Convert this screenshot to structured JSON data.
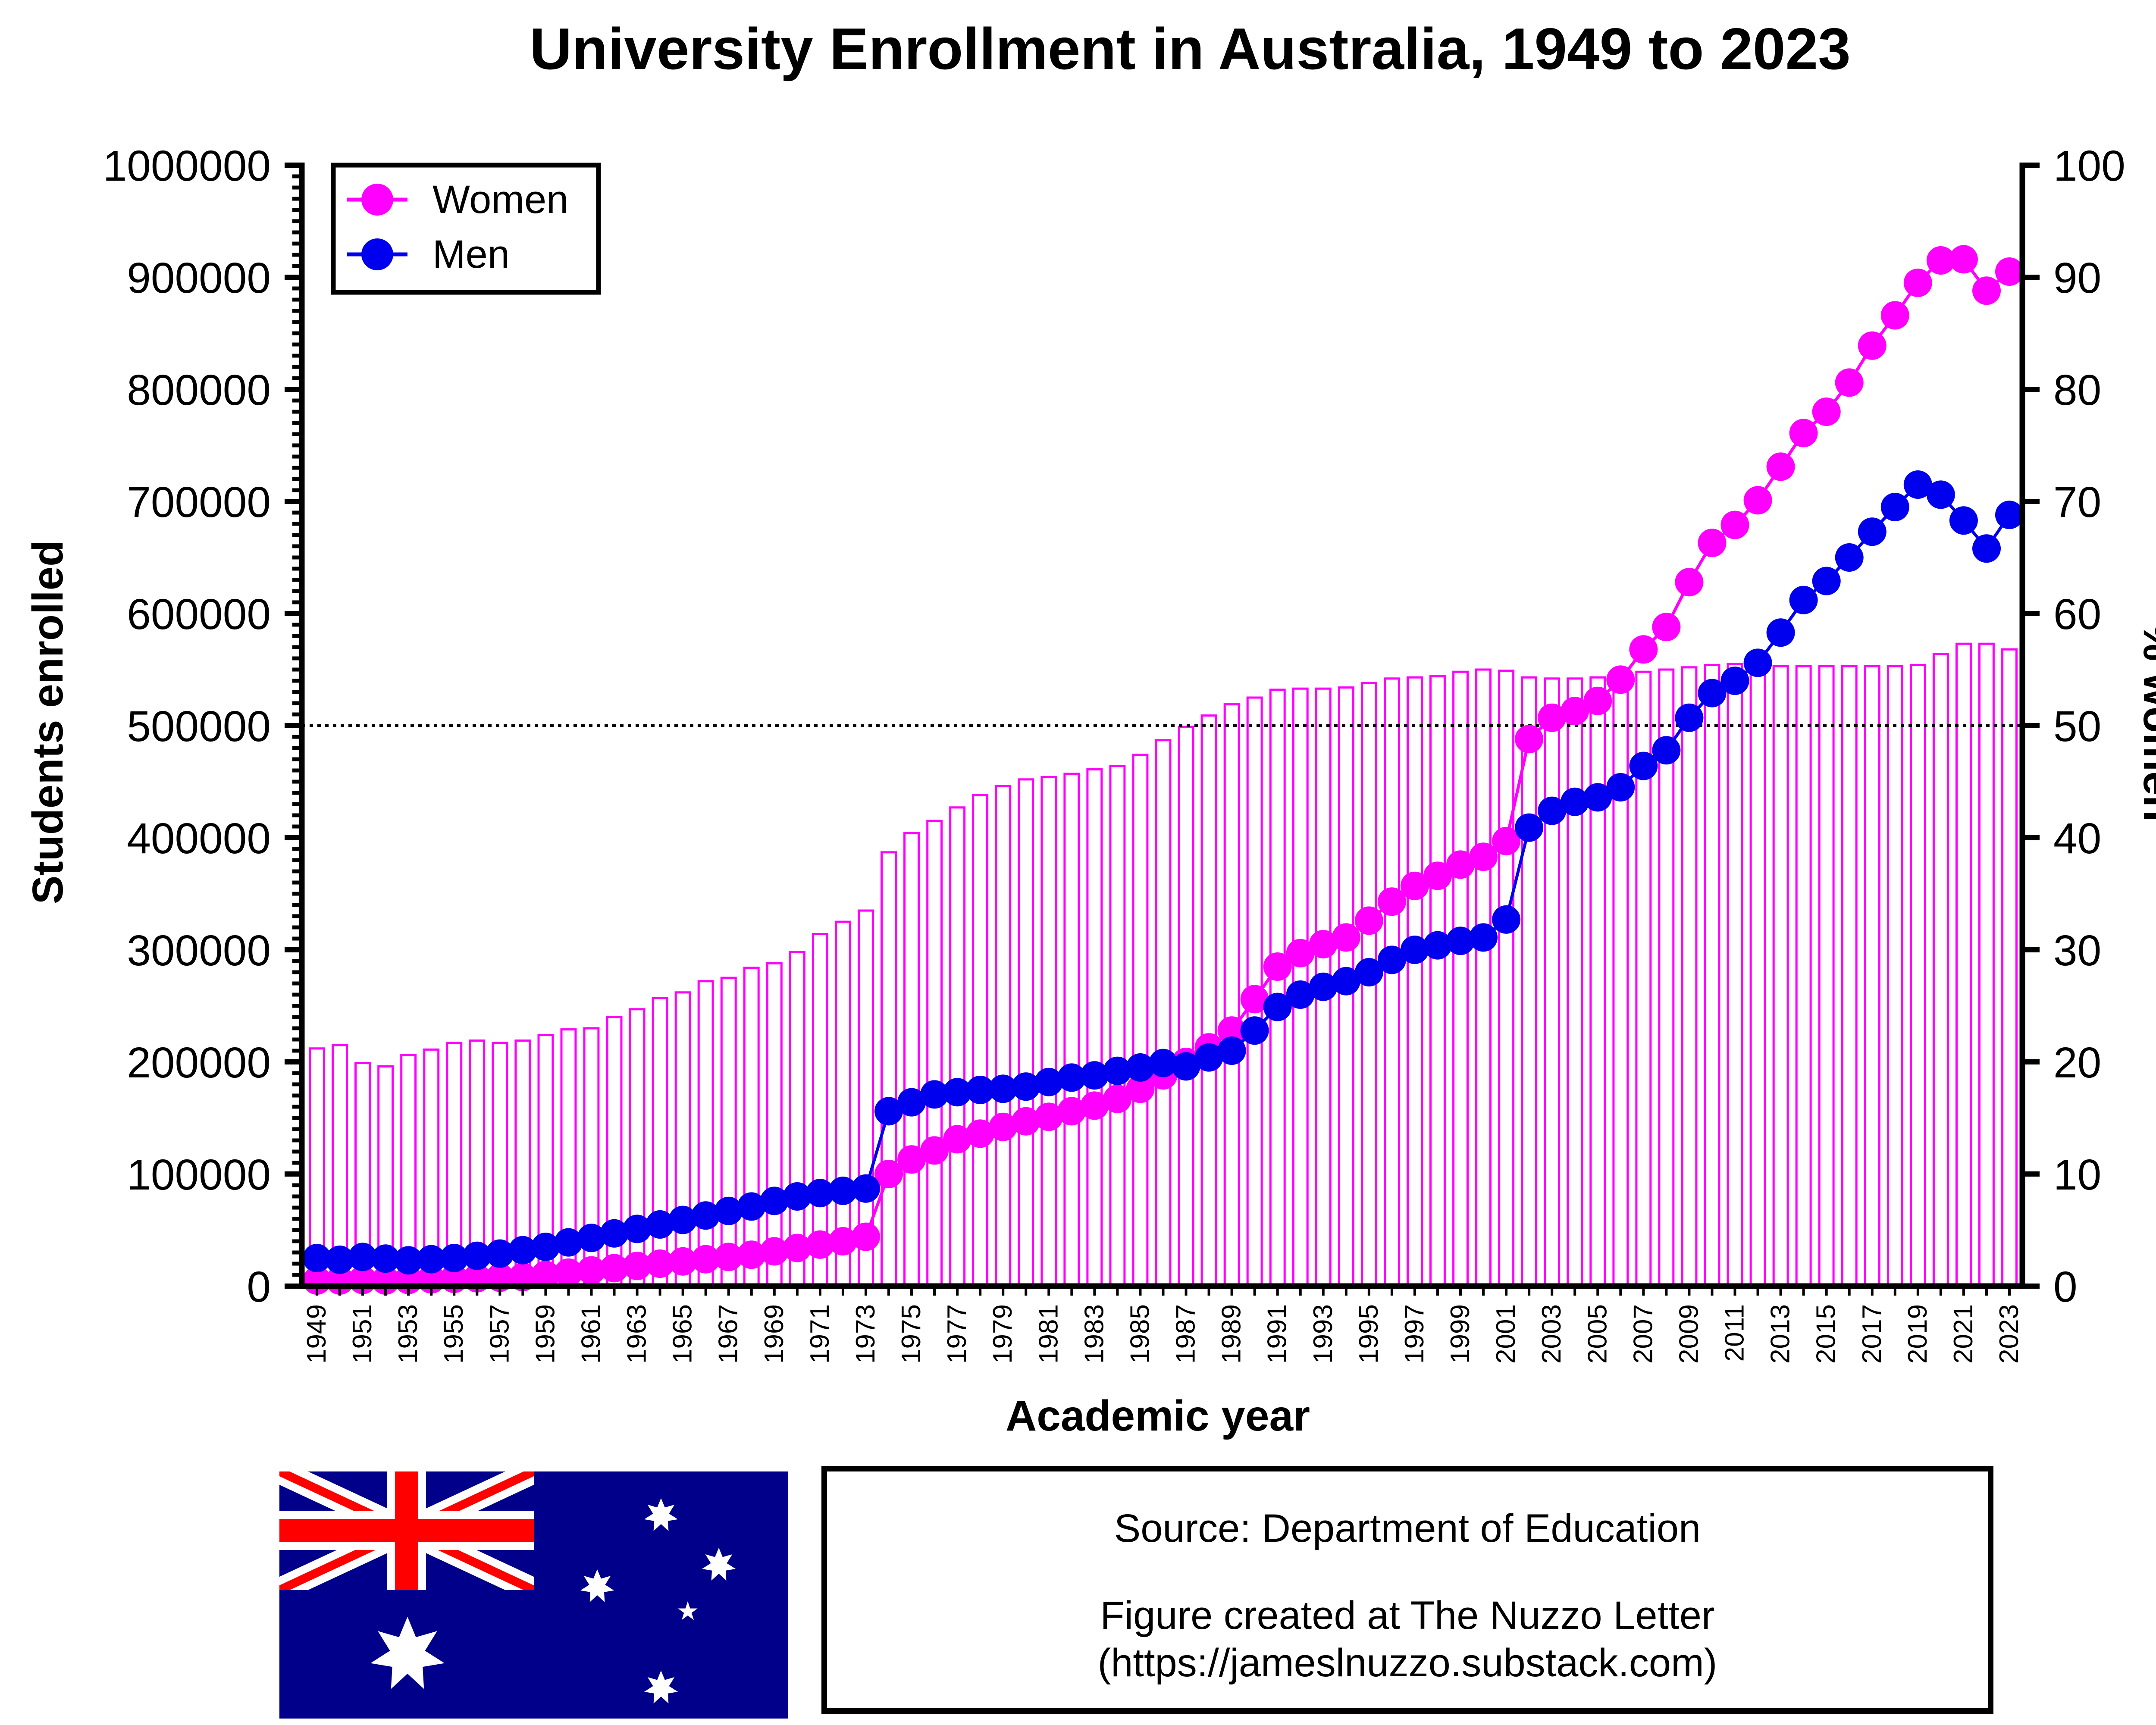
{
  "chart_data": {
    "type": "bar+line",
    "title": "University Enrollment in Australia, 1949 to 2023",
    "xlabel": "Academic year",
    "ylabel": "Students enrolled",
    "y2label": "% women",
    "ylim": [
      0,
      1000000
    ],
    "y2lim": [
      0,
      100
    ],
    "yticks": [
      "0",
      "100000",
      "200000",
      "300000",
      "400000",
      "500000",
      "600000",
      "700000",
      "800000",
      "900000",
      "1000000"
    ],
    "y2ticks": [
      "0",
      "10",
      "20",
      "30",
      "40",
      "50",
      "60",
      "70",
      "80",
      "90",
      "100"
    ],
    "reference_line_pct": 50,
    "legend": {
      "position": "top-left",
      "entries": [
        "Women",
        "Men"
      ]
    },
    "years": [
      1949,
      1950,
      1951,
      1952,
      1953,
      1954,
      1955,
      1956,
      1957,
      1958,
      1959,
      1960,
      1961,
      1962,
      1963,
      1964,
      1965,
      1966,
      1967,
      1968,
      1969,
      1970,
      1971,
      1972,
      1973,
      1974,
      1975,
      1976,
      1977,
      1978,
      1979,
      1980,
      1981,
      1982,
      1983,
      1984,
      1985,
      1986,
      1987,
      1988,
      1989,
      1990,
      1991,
      1992,
      1993,
      1994,
      1995,
      1996,
      1997,
      1998,
      1999,
      2000,
      2001,
      2002,
      2003,
      2004,
      2005,
      2006,
      2007,
      2008,
      2009,
      2010,
      2011,
      2012,
      2013,
      2014,
      2015,
      2016,
      2017,
      2018,
      2019,
      2020,
      2021,
      2022,
      2023
    ],
    "xticklabels": [
      "1949",
      "1951",
      "1953",
      "1955",
      "1957",
      "1959",
      "1961",
      "1963",
      "1965",
      "1967",
      "1969",
      "1971",
      "1973",
      "1975",
      "1977",
      "1979",
      "1981",
      "1983",
      "1985",
      "1987",
      "1989",
      "1991",
      "1993",
      "1995",
      "1997",
      "1999",
      "2001",
      "2003",
      "2005",
      "2007",
      "2009",
      "2011",
      "2013",
      "2015",
      "2017",
      "2019",
      "2021",
      "2023"
    ],
    "series": [
      {
        "name": "% women",
        "kind": "bar",
        "axis": "right",
        "color": "#ff00ff",
        "values": [
          21.2,
          21.5,
          19.9,
          19.6,
          20.6,
          21.1,
          21.7,
          21.9,
          21.7,
          21.9,
          22.4,
          22.9,
          23.0,
          24.0,
          24.7,
          25.7,
          26.2,
          27.2,
          27.5,
          28.4,
          28.8,
          29.8,
          31.4,
          32.5,
          33.5,
          38.7,
          40.4,
          41.5,
          42.7,
          43.8,
          44.6,
          45.2,
          45.4,
          45.7,
          46.1,
          46.4,
          47.4,
          48.7,
          49.9,
          50.9,
          51.9,
          52.5,
          53.2,
          53.3,
          53.3,
          53.4,
          53.8,
          54.2,
          54.3,
          54.4,
          54.8,
          55.0,
          54.9,
          54.3,
          54.2,
          54.2,
          54.3,
          54.4,
          54.8,
          55.0,
          55.2,
          55.4,
          55.5,
          55.5,
          55.3,
          55.3,
          55.3,
          55.3,
          55.3,
          55.3,
          55.4,
          56.4,
          57.3,
          57.3,
          56.8
        ]
      },
      {
        "name": "Women",
        "kind": "line",
        "axis": "left",
        "color": "#ff00ff",
        "values": [
          5000,
          5000,
          5500,
          5000,
          5500,
          6000,
          6500,
          7000,
          7500,
          8000,
          10000,
          12000,
          14000,
          16000,
          18000,
          20000,
          22000,
          24000,
          26000,
          28000,
          31000,
          34000,
          37000,
          40000,
          44000,
          100000,
          113000,
          121000,
          131000,
          136000,
          142000,
          147000,
          151000,
          156000,
          161000,
          167000,
          176000,
          188000,
          200000,
          213000,
          228000,
          256000,
          285000,
          297000,
          305000,
          311000,
          326000,
          343000,
          357000,
          366000,
          376000,
          383000,
          397000,
          488000,
          507000,
          513000,
          522000,
          541000,
          568000,
          588000,
          628000,
          663000,
          679000,
          701000,
          731000,
          761000,
          780000,
          806000,
          839000,
          866000,
          895000,
          915000,
          916000,
          888000,
          905000
        ]
      },
      {
        "name": "Men",
        "kind": "line",
        "axis": "left",
        "color": "#0000ee",
        "values": [
          25000,
          23500,
          26000,
          24500,
          23000,
          24000,
          25000,
          27000,
          29000,
          32000,
          35000,
          39000,
          43000,
          47000,
          51000,
          55000,
          59000,
          63000,
          67000,
          71000,
          76000,
          80000,
          83000,
          85000,
          87000,
          156000,
          164000,
          171000,
          173000,
          175000,
          176000,
          178000,
          182000,
          186000,
          188000,
          192000,
          195000,
          199000,
          196000,
          204000,
          210000,
          228000,
          249000,
          260000,
          267000,
          272000,
          280000,
          291000,
          300000,
          304000,
          308000,
          311000,
          327000,
          409000,
          424000,
          432000,
          436000,
          445000,
          464000,
          478000,
          507000,
          529000,
          540000,
          556000,
          583000,
          612000,
          629000,
          650000,
          673000,
          695000,
          715000,
          706000,
          683000,
          658000,
          688000
        ]
      }
    ]
  },
  "source": {
    "line1": "Source: Department of Education",
    "line2": "Figure created at The Nuzzo Letter",
    "line3": "(https://jameslnuzzo.substack.com)"
  },
  "colors": {
    "women": "#ff00ff",
    "men": "#0000ee",
    "flag_blue": "#00008b",
    "flag_red": "#ff0000",
    "white": "#ffffff"
  }
}
